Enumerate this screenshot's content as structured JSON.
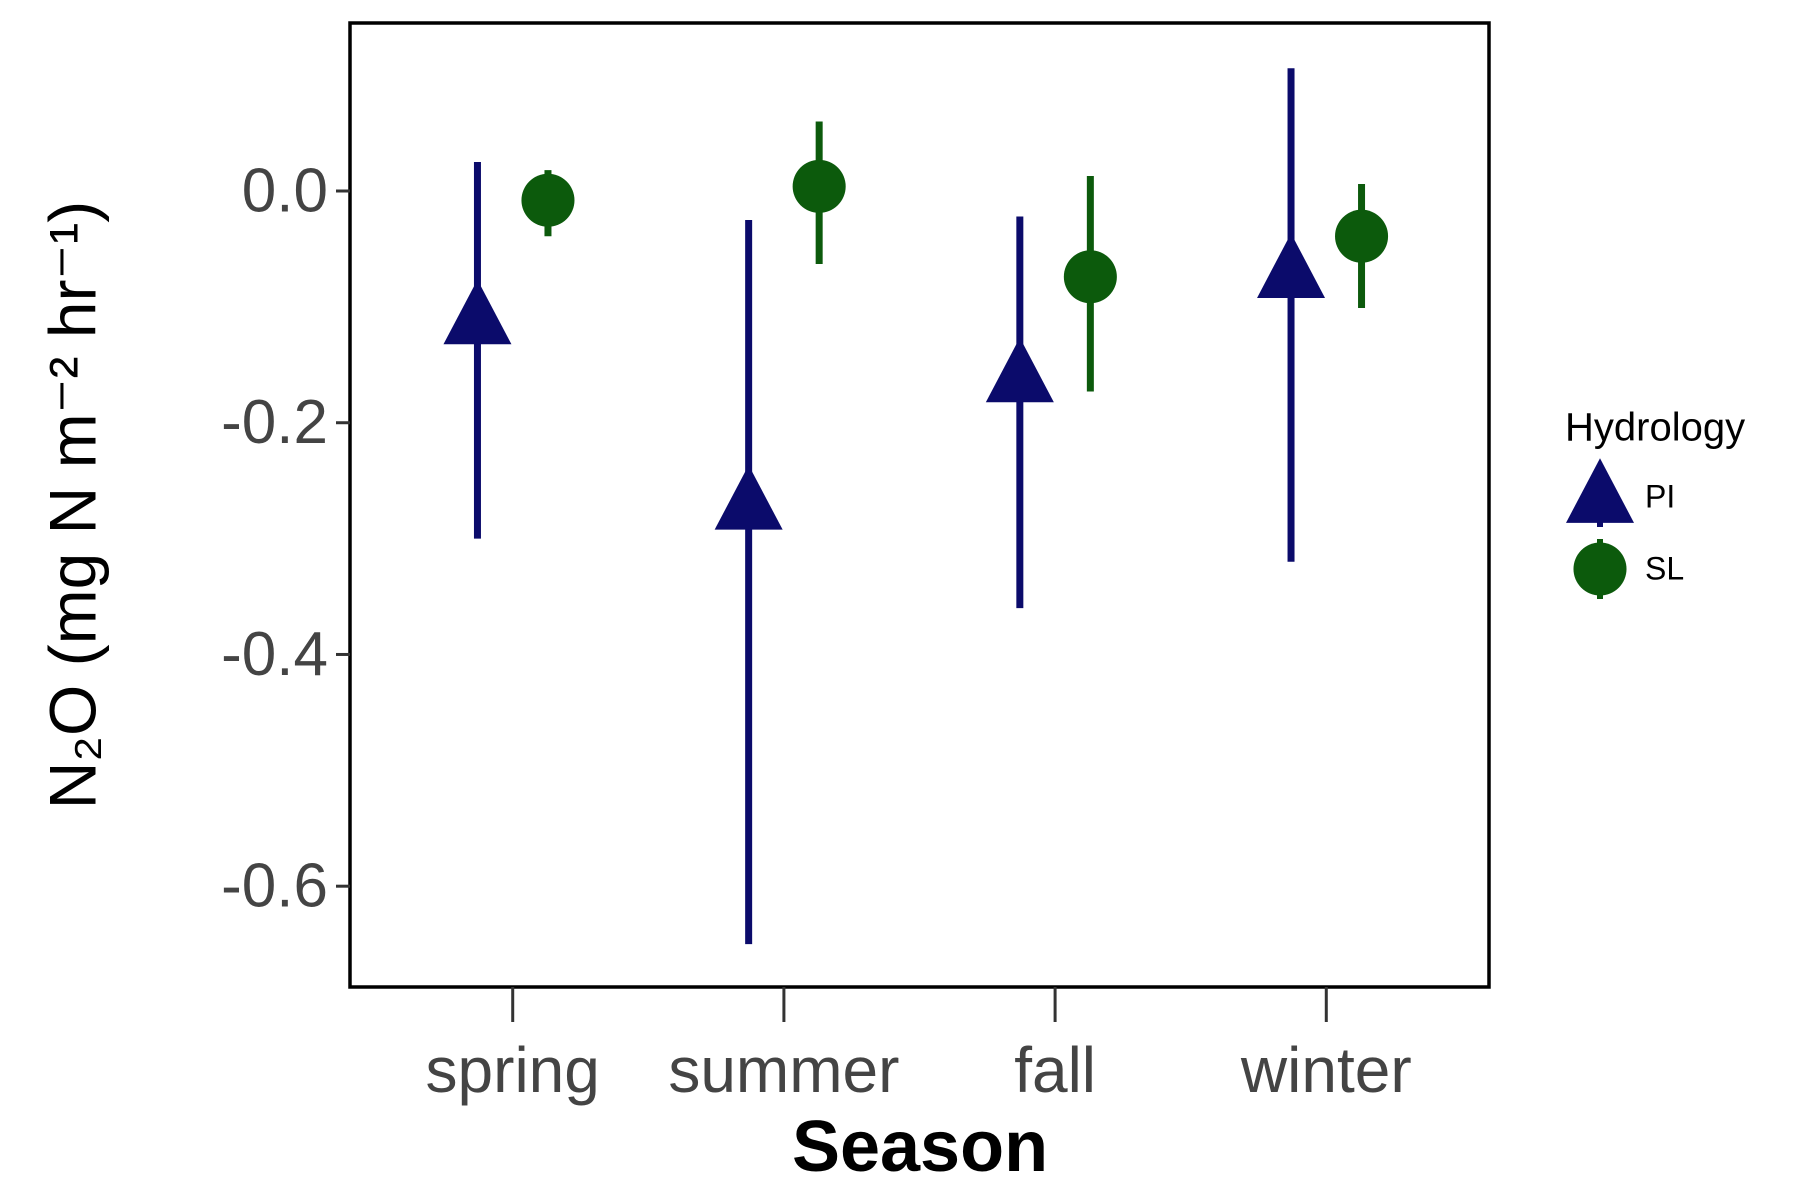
{
  "chart_data": {
    "type": "pointrange",
    "x_label": "Season",
    "y_label": "N₂O (mg N m⁻² hr⁻¹)",
    "categories": [
      "spring",
      "summer",
      "fall",
      "winter"
    ],
    "ylim": [
      0.145,
      -0.687
    ],
    "yticks": [
      {
        "value": 0,
        "label": "0.0"
      },
      -0.2,
      -0.4,
      -0.6
    ],
    "legend_title": "Hydrology",
    "series": [
      {
        "name": "PI",
        "color": "#0b0b6b",
        "shape": "triangle",
        "values": [
          -0.11,
          -0.27,
          -0.16,
          -0.07
        ],
        "lower": [
          -0.3,
          -0.65,
          -0.36,
          -0.32
        ],
        "upper": [
          0.025,
          -0.025,
          -0.022,
          0.106
        ]
      },
      {
        "name": "SL",
        "color": "#0c5a0c",
        "shape": "circle",
        "values": [
          -0.008,
          0.004,
          -0.074,
          -0.039
        ],
        "lower": [
          -0.039,
          -0.063,
          -0.173,
          -0.101
        ],
        "upper": [
          0.018,
          0.06,
          0.013,
          0.006
        ]
      }
    ]
  }
}
